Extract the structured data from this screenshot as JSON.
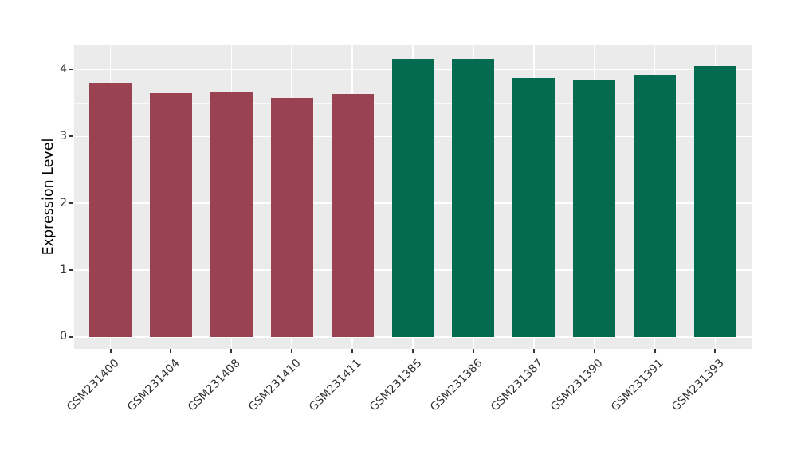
{
  "chart_data": {
    "type": "bar",
    "title": "",
    "xlabel": "",
    "ylabel": "Expression Level",
    "categories": [
      "GSM231400",
      "GSM231404",
      "GSM231408",
      "GSM231410",
      "GSM231411",
      "GSM231385",
      "GSM231386",
      "GSM231387",
      "GSM231390",
      "GSM231391",
      "GSM231393"
    ],
    "values": [
      3.8,
      3.65,
      3.66,
      3.58,
      3.64,
      4.16,
      4.16,
      3.87,
      3.84,
      3.92,
      4.05
    ],
    "bar_colors": [
      "#9B4252",
      "#9B4252",
      "#9B4252",
      "#9B4252",
      "#9B4252",
      "#046A50",
      "#046A50",
      "#046A50",
      "#046A50",
      "#046A50",
      "#046A50"
    ],
    "yticks": [
      0,
      1,
      2,
      3,
      4
    ],
    "ylim": [
      0,
      4.37
    ],
    "grid": true,
    "legend": false,
    "x_label_rotation_deg": -45,
    "colors": {
      "group_red": "#9B4252",
      "group_green": "#046A50",
      "panel_background": "#EBEBEB",
      "grid_major": "#FFFFFF",
      "axis_text": "#333333",
      "axis_title": "#000000"
    }
  }
}
